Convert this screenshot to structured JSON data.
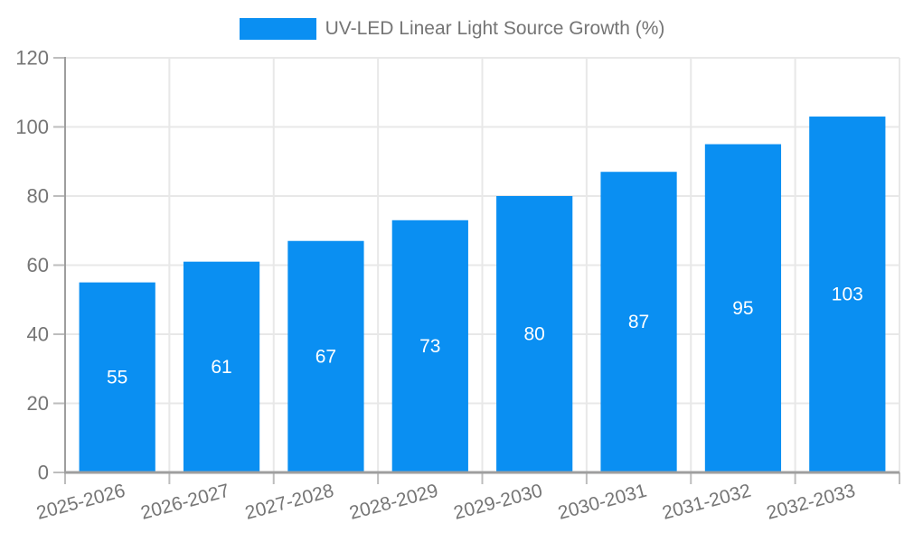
{
  "legend": {
    "position": "top"
  },
  "chart_data": {
    "type": "bar",
    "title": "UV-LED Linear Light Source Growth (%)",
    "categories": [
      "2025-2026",
      "2026-2027",
      "2027-2028",
      "2028-2029",
      "2029-2030",
      "2030-2031",
      "2031-2032",
      "2032-2033"
    ],
    "values": [
      55,
      61,
      67,
      73,
      80,
      87,
      95,
      103
    ],
    "xlabel": "",
    "ylabel": "",
    "ylim": [
      0,
      120
    ],
    "ytick_step": 20,
    "yticks": [
      0,
      20,
      40,
      60,
      80,
      100,
      120
    ],
    "grid": true,
    "legend_position": "top",
    "bar_color": "#0a8ff2",
    "value_label_color": "#ffffff",
    "axis_text_color": "#757575",
    "axis_color": "#9e9e9e",
    "grid_color": "#e8e8e8",
    "tick_color": "#bdbdbd"
  }
}
